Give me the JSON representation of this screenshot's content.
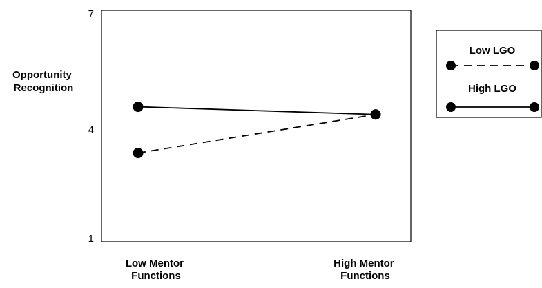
{
  "chart_data": {
    "type": "line",
    "title": "",
    "xlabel": "",
    "ylabel": "Opportunity Recognition",
    "ylabel_lines": [
      "Opportunity",
      "Recognition"
    ],
    "categories": [
      "Low Mentor Functions",
      "High Mentor Functions"
    ],
    "category_lines": [
      [
        "Low Mentor",
        "Functions"
      ],
      [
        "High Mentor",
        "Functions"
      ]
    ],
    "yticks": [
      1,
      4,
      7
    ],
    "ylim": [
      1,
      7
    ],
    "grid": false,
    "legend_position": "right",
    "series": [
      {
        "name": "Low LGO",
        "style": "dashed",
        "values": [
          3.3,
          4.3
        ]
      },
      {
        "name": "High LGO",
        "style": "solid",
        "values": [
          4.5,
          4.3
        ]
      }
    ]
  },
  "colors": {
    "line": "#000000",
    "marker": "#000000",
    "frame": "#000000",
    "background": "#ffffff"
  }
}
